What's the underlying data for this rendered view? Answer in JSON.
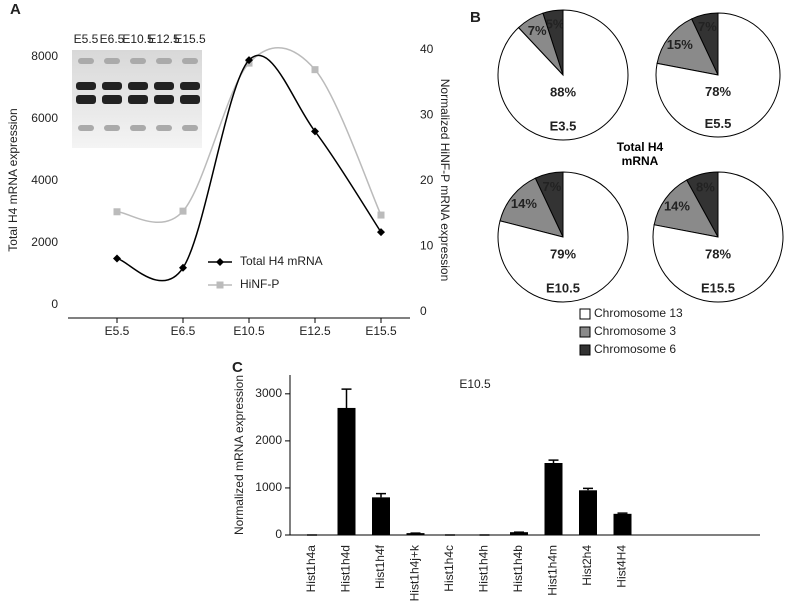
{
  "chart_data": [
    {
      "type": "line",
      "label": "A",
      "categories": [
        "E5.5",
        "E6.5",
        "E10.5",
        "E12.5",
        "E15.5"
      ],
      "series": [
        {
          "name": "Total H4 mRNA",
          "color": "#000000",
          "marker": "diamond",
          "values": [
            1500,
            1200,
            7900,
            5600,
            2350
          ]
        },
        {
          "name": "HiNF-P",
          "color": "#bbbbbb",
          "marker": "square",
          "axis": "y2",
          "values": [
            15.3,
            15.4,
            38,
            37,
            14.8
          ]
        }
      ],
      "ylim": [
        0,
        8000
      ],
      "yticks": [
        0,
        2000,
        4000,
        6000,
        8000
      ],
      "y2lim": [
        0,
        40
      ],
      "y2ticks": [
        0,
        10,
        20,
        30,
        40
      ],
      "ylabel": "Total H4 mRNA expression",
      "y2label": "Normalized HiNF-P mRNA expression",
      "inset_labels": [
        "E5.5",
        "E6.5",
        "E10.5",
        "E12.5",
        "E15.5"
      ]
    },
    {
      "type": "pie",
      "label": "B",
      "title": "Total H4 mRNA",
      "categories": [
        "Chromosome 13",
        "Chromosome 3",
        "Chromosome 6"
      ],
      "colors": [
        "#ffffff",
        "#8a8a8a",
        "#333333"
      ],
      "pies": [
        {
          "name": "E3.5",
          "values": [
            88,
            7,
            5
          ],
          "value_labels": [
            "88%",
            "7%",
            "5%"
          ]
        },
        {
          "name": "E5.5",
          "values": [
            78,
            15,
            7
          ],
          "value_labels": [
            "78%",
            "15%",
            "7%"
          ]
        },
        {
          "name": "E10.5",
          "values": [
            79,
            14,
            7
          ],
          "value_labels": [
            "79%",
            "14%",
            "7%"
          ]
        },
        {
          "name": "E15.5",
          "values": [
            78,
            14,
            8
          ],
          "value_labels": [
            "78%",
            "14%",
            "8%"
          ]
        }
      ]
    },
    {
      "type": "bar",
      "label": "C",
      "annotation": "E10.5",
      "ylabel": "Normalized mRNA expression",
      "categories": [
        "Hist1h4a",
        "Hist1h4d",
        "Hist1h4f",
        "Hist1h4j+k",
        "Hist1h4c",
        "Hist1h4h",
        "Hist1h4b",
        "Hist1h4m",
        "Hist2h4",
        "Hist4H4"
      ],
      "values": [
        0,
        2700,
        800,
        40,
        0,
        0,
        60,
        1530,
        950,
        450
      ],
      "errors": [
        0,
        400,
        80,
        0,
        0,
        0,
        0,
        60,
        40,
        15
      ],
      "color": "#000000",
      "ylim": [
        0,
        3400
      ],
      "yticks": [
        0,
        1000,
        2000,
        3000
      ]
    }
  ]
}
